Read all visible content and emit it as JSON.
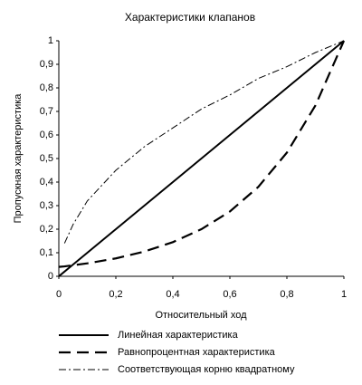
{
  "chart_data": {
    "type": "line",
    "title": "Характеристики клапанов",
    "x_label": "Относительный ход",
    "y_label": "Пропускная характеристика",
    "x": [
      0,
      0.02,
      0.05,
      0.1,
      0.2,
      0.3,
      0.4,
      0.5,
      0.6,
      0.7,
      0.8,
      0.9,
      1
    ],
    "series": [
      {
        "name": "Линейная характеристика",
        "color": "#000000",
        "style": "solid",
        "values": [
          0,
          0.02,
          0.05,
          0.1,
          0.2,
          0.3,
          0.4,
          0.5,
          0.6,
          0.7,
          0.8,
          0.9,
          1
        ]
      },
      {
        "name": "Равнопроцентная характеристика",
        "color": "#000000",
        "style": "dashed",
        "values": [
          0.04,
          0.042,
          0.047,
          0.055,
          0.076,
          0.105,
          0.145,
          0.2,
          0.275,
          0.38,
          0.525,
          0.725,
          1
        ]
      },
      {
        "name": "Соответствующая корню квадратному",
        "color": "#000000",
        "style": "dashdot",
        "values": [
          null,
          0.14,
          0.22,
          0.32,
          0.45,
          0.55,
          0.63,
          0.71,
          0.77,
          0.84,
          0.89,
          0.95,
          1
        ]
      }
    ],
    "xlim": [
      0,
      1
    ],
    "ylim": [
      0,
      1
    ],
    "xticks": [
      0,
      {
        "value": 0.2,
        "label": "0,2"
      },
      {
        "value": 0.4,
        "label": "0,4"
      },
      {
        "value": 0.6,
        "label": "0,6"
      },
      {
        "value": 0.8,
        "label": "0,8"
      },
      1
    ],
    "yticks": [
      0,
      {
        "value": 0.1,
        "label": "0,1"
      },
      {
        "value": 0.2,
        "label": "0,2"
      },
      {
        "value": 0.3,
        "label": "0,3"
      },
      {
        "value": 0.4,
        "label": "0,4"
      },
      {
        "value": 0.5,
        "label": "0,5"
      },
      {
        "value": 0.6,
        "label": "0,6"
      },
      {
        "value": 0.7,
        "label": "0,7"
      },
      {
        "value": 0.8,
        "label": "0,8"
      },
      {
        "value": 0.9,
        "label": "0,9"
      },
      1
    ],
    "grid": false
  }
}
